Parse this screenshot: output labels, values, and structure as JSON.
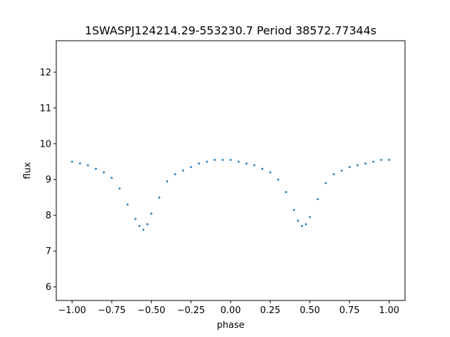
{
  "chart_data": {
    "type": "scatter",
    "title": "1SWASPJ124214.29-553230.7 Period 38572.77344s",
    "xlabel": "phase",
    "ylabel": "flux",
    "xlim": [
      -1.1,
      1.1
    ],
    "ylim": [
      5.62,
      12.88
    ],
    "xticks": [
      -1.0,
      -0.75,
      -0.5,
      -0.25,
      0.0,
      0.25,
      0.5,
      0.75,
      1.0
    ],
    "xtick_labels": [
      "−1.00",
      "−0.75",
      "−0.50",
      "−0.25",
      "0.00",
      "0.25",
      "0.50",
      "0.75",
      "1.00"
    ],
    "yticks": [
      6,
      7,
      8,
      9,
      10,
      11,
      12
    ],
    "ytick_labels": [
      "6",
      "7",
      "8",
      "9",
      "10",
      "11",
      "12"
    ],
    "grid": false,
    "point_color": "#1f77b4",
    "series": [
      {
        "values": [
          [
            -1.0,
            9.5
          ],
          [
            -0.95,
            9.45
          ],
          [
            -0.9,
            9.4
          ],
          [
            -0.85,
            9.3
          ],
          [
            -0.8,
            9.2
          ],
          [
            -0.75,
            9.05
          ],
          [
            -0.7,
            8.75
          ],
          [
            -0.65,
            8.3
          ],
          [
            -0.6,
            7.9
          ],
          [
            -0.575,
            7.7
          ],
          [
            -0.55,
            7.6
          ],
          [
            -0.525,
            7.75
          ],
          [
            -0.5,
            8.05
          ],
          [
            -0.45,
            8.5
          ],
          [
            -0.4,
            8.95
          ],
          [
            -0.35,
            9.15
          ],
          [
            -0.3,
            9.25
          ],
          [
            -0.25,
            9.35
          ],
          [
            -0.2,
            9.45
          ],
          [
            -0.15,
            9.5
          ],
          [
            -0.1,
            9.55
          ],
          [
            -0.05,
            9.55
          ],
          [
            0.0,
            9.55
          ],
          [
            0.05,
            9.5
          ],
          [
            0.1,
            9.45
          ],
          [
            0.15,
            9.4
          ],
          [
            0.2,
            9.3
          ],
          [
            0.25,
            9.2
          ],
          [
            0.3,
            9.0
          ],
          [
            0.35,
            8.65
          ],
          [
            0.4,
            8.15
          ],
          [
            0.425,
            7.85
          ],
          [
            0.45,
            7.7
          ],
          [
            0.475,
            7.75
          ],
          [
            0.5,
            7.95
          ],
          [
            0.55,
            8.45
          ],
          [
            0.6,
            8.9
          ],
          [
            0.65,
            9.15
          ],
          [
            0.7,
            9.25
          ],
          [
            0.75,
            9.35
          ],
          [
            0.8,
            9.4
          ],
          [
            0.85,
            9.45
          ],
          [
            0.9,
            9.5
          ],
          [
            0.95,
            9.55
          ],
          [
            1.0,
            9.55
          ]
        ]
      }
    ]
  }
}
